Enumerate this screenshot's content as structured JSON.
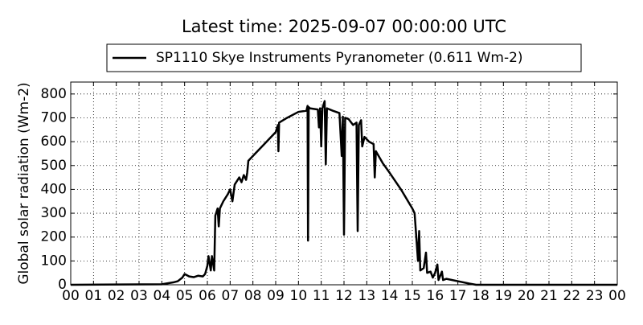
{
  "chart_data": {
    "type": "line",
    "title": "Latest time: 2025-09-07 00:00:00 UTC",
    "y_label": "Global solar radiation (Wm-2)",
    "x": [
      0,
      4.0,
      4.5,
      4.7,
      4.9,
      5.0,
      5.2,
      5.4,
      5.6,
      5.8,
      5.9,
      6.0,
      6.05,
      6.15,
      6.2,
      6.3,
      6.35,
      6.45,
      6.5,
      6.55,
      6.7,
      6.9,
      7.0,
      7.1,
      7.2,
      7.4,
      7.5,
      7.6,
      7.7,
      7.75,
      7.8,
      8.0,
      8.5,
      9.0,
      9.1,
      9.12,
      9.15,
      9.5,
      10.0,
      10.35,
      10.4,
      10.42,
      10.45,
      10.5,
      10.85,
      10.9,
      10.95,
      11.0,
      11.05,
      11.15,
      11.2,
      11.25,
      11.5,
      11.8,
      11.9,
      11.95,
      12.0,
      12.05,
      12.2,
      12.4,
      12.55,
      12.6,
      12.65,
      12.75,
      12.8,
      12.9,
      13.1,
      13.3,
      13.35,
      13.4,
      13.7,
      14.0,
      14.5,
      15.0,
      15.1,
      15.25,
      15.3,
      15.35,
      15.5,
      15.6,
      15.65,
      15.8,
      15.9,
      16.0,
      16.1,
      16.15,
      16.3,
      16.35,
      16.5,
      17.0,
      17.5,
      17.8,
      24
    ],
    "series": [
      {
        "name": "SP1110 Skye Instruments Pyranometer (0.611 Wm-2)",
        "color": "#000000",
        "values": [
          0,
          2,
          10,
          15,
          30,
          45,
          35,
          32,
          38,
          35,
          45,
          80,
          120,
          60,
          120,
          60,
          290,
          320,
          245,
          320,
          350,
          380,
          400,
          350,
          420,
          450,
          430,
          460,
          440,
          470,
          520,
          540,
          590,
          640,
          670,
          560,
          680,
          700,
          725,
          730,
          750,
          185,
          745,
          740,
          735,
          660,
          740,
          580,
          740,
          770,
          505,
          740,
          730,
          720,
          540,
          705,
          210,
          700,
          695,
          670,
          680,
          225,
          670,
          690,
          580,
          620,
          600,
          590,
          450,
          560,
          510,
          470,
          400,
          320,
          300,
          100,
          225,
          60,
          70,
          135,
          50,
          55,
          30,
          50,
          85,
          20,
          55,
          20,
          25,
          15,
          5,
          0,
          0
        ]
      }
    ],
    "xlim": [
      0,
      24
    ],
    "xticks": [
      {
        "value": 0,
        "label": "00"
      },
      {
        "value": 1,
        "label": "01"
      },
      {
        "value": 2,
        "label": "02"
      },
      {
        "value": 3,
        "label": "03"
      },
      {
        "value": 4,
        "label": "04"
      },
      {
        "value": 5,
        "label": "05"
      },
      {
        "value": 6,
        "label": "06"
      },
      {
        "value": 7,
        "label": "07"
      },
      {
        "value": 8,
        "label": "08"
      },
      {
        "value": 9,
        "label": "09"
      },
      {
        "value": 10,
        "label": "10"
      },
      {
        "value": 11,
        "label": "11"
      },
      {
        "value": 12,
        "label": "12"
      },
      {
        "value": 13,
        "label": "13"
      },
      {
        "value": 14,
        "label": "14"
      },
      {
        "value": 15,
        "label": "15"
      },
      {
        "value": 16,
        "label": "16"
      },
      {
        "value": 17,
        "label": "17"
      },
      {
        "value": 18,
        "label": "18"
      },
      {
        "value": 19,
        "label": "19"
      },
      {
        "value": 20,
        "label": "20"
      },
      {
        "value": 21,
        "label": "21"
      },
      {
        "value": 22,
        "label": "22"
      },
      {
        "value": 23,
        "label": "23"
      },
      {
        "value": 24,
        "label": "00"
      }
    ],
    "ylim": [
      0,
      850
    ],
    "yticks": [
      0,
      100,
      200,
      300,
      400,
      500,
      600,
      700,
      800
    ],
    "grid": true
  }
}
